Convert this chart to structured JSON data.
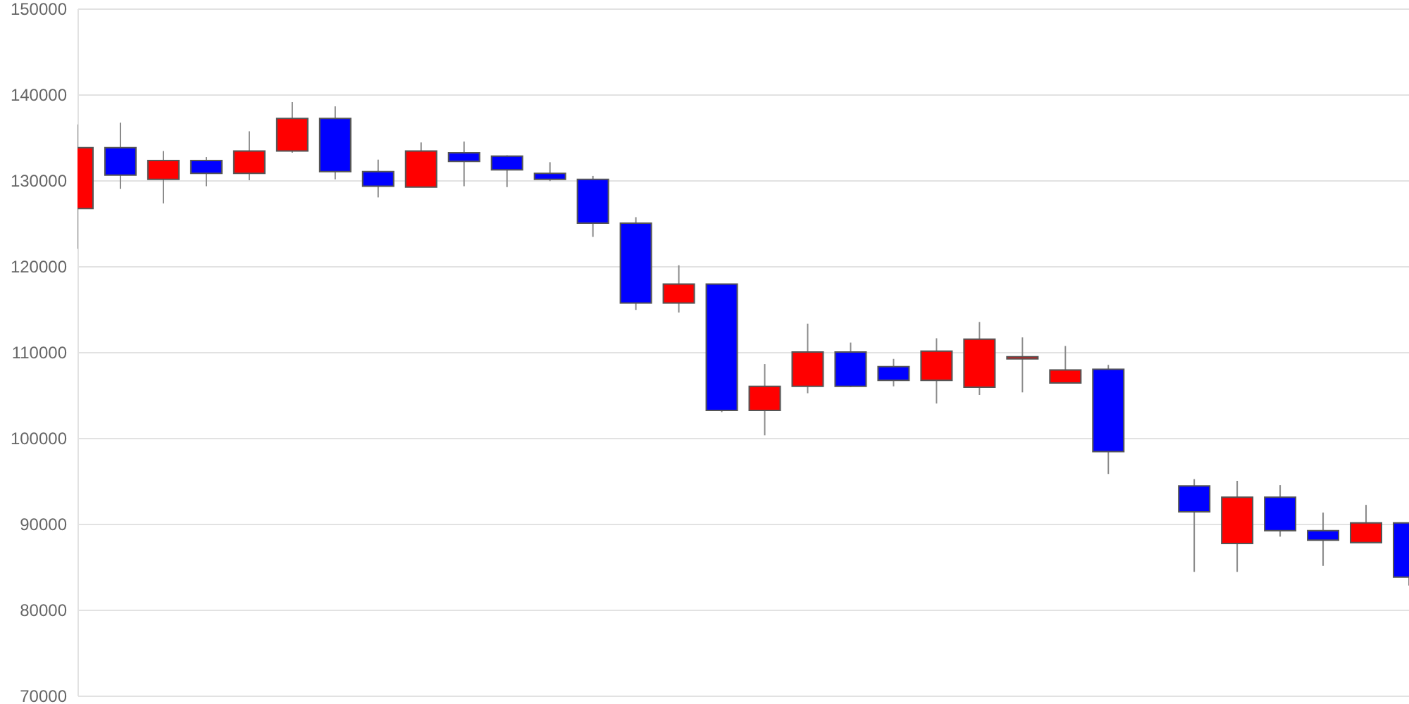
{
  "chart_data": {
    "type": "candlestick",
    "categories": [
      null,
      null,
      null,
      null,
      null,
      null,
      null,
      null,
      null,
      null,
      null,
      null,
      null,
      null,
      null,
      null,
      null,
      null,
      null,
      null,
      null,
      null,
      null,
      null,
      null,
      null,
      null,
      null,
      null,
      null,
      null,
      null
    ],
    "ohlc": [
      [
        126700,
        136500,
        122000,
        133800
      ],
      [
        133800,
        136700,
        129000,
        130600
      ],
      [
        130100,
        133400,
        127300,
        132300
      ],
      [
        132300,
        132700,
        129300,
        130800
      ],
      [
        130800,
        135700,
        130000,
        133400
      ],
      [
        133400,
        139100,
        133200,
        137200
      ],
      [
        137200,
        138600,
        130100,
        131000
      ],
      [
        131000,
        132400,
        128000,
        129300
      ],
      [
        129200,
        134400,
        129200,
        133400
      ],
      [
        133200,
        134500,
        129300,
        132200
      ],
      [
        132800,
        132900,
        129200,
        131200
      ],
      [
        130800,
        132100,
        129900,
        130100
      ],
      [
        130100,
        130500,
        123400,
        125000
      ],
      [
        125000,
        125700,
        114900,
        115700
      ],
      [
        115700,
        120100,
        114600,
        117900
      ],
      [
        117900,
        117900,
        103000,
        103200
      ],
      [
        103200,
        108600,
        100300,
        106000
      ],
      [
        106000,
        113300,
        105200,
        110000
      ],
      [
        110000,
        111100,
        105900,
        106000
      ],
      [
        108300,
        109200,
        106000,
        106700
      ],
      [
        106700,
        111600,
        104000,
        110100
      ],
      [
        105900,
        113500,
        105000,
        111500
      ],
      [
        109200,
        111700,
        105300,
        109450
      ],
      [
        106400,
        110700,
        106400,
        107900
      ],
      [
        108000,
        108500,
        95800,
        98400
      ],
      null,
      [
        94400,
        95200,
        84400,
        91400
      ],
      [
        87700,
        95000,
        84400,
        93100
      ],
      [
        93100,
        94500,
        88500,
        89200
      ],
      [
        89200,
        91300,
        85100,
        88100
      ],
      [
        87800,
        92200,
        87800,
        90100
      ],
      [
        90100,
        90100,
        82800,
        83800
      ]
    ],
    "colors": [
      "#ff0000",
      "#0000ff",
      "#ff0000",
      "#0000ff",
      "#ff0000",
      "#ff0000",
      "#0000ff",
      "#0000ff",
      "#ff0000",
      "#0000ff",
      "#0000ff",
      "#0000ff",
      "#0000ff",
      "#0000ff",
      "#ff0000",
      "#0000ff",
      "#ff0000",
      "#ff0000",
      "#0000ff",
      "#0000ff",
      "#ff0000",
      "#ff0000",
      "#ff0000",
      "#ff0000",
      "#0000ff",
      null,
      "#0000ff",
      "#ff0000",
      "#0000ff",
      "#0000ff",
      "#ff0000",
      "#0000ff"
    ],
    "ylim": [
      70000,
      150000
    ],
    "yticks": [
      70000,
      80000,
      90000,
      100000,
      110000,
      120000,
      130000,
      140000,
      150000
    ],
    "grid": "y"
  }
}
